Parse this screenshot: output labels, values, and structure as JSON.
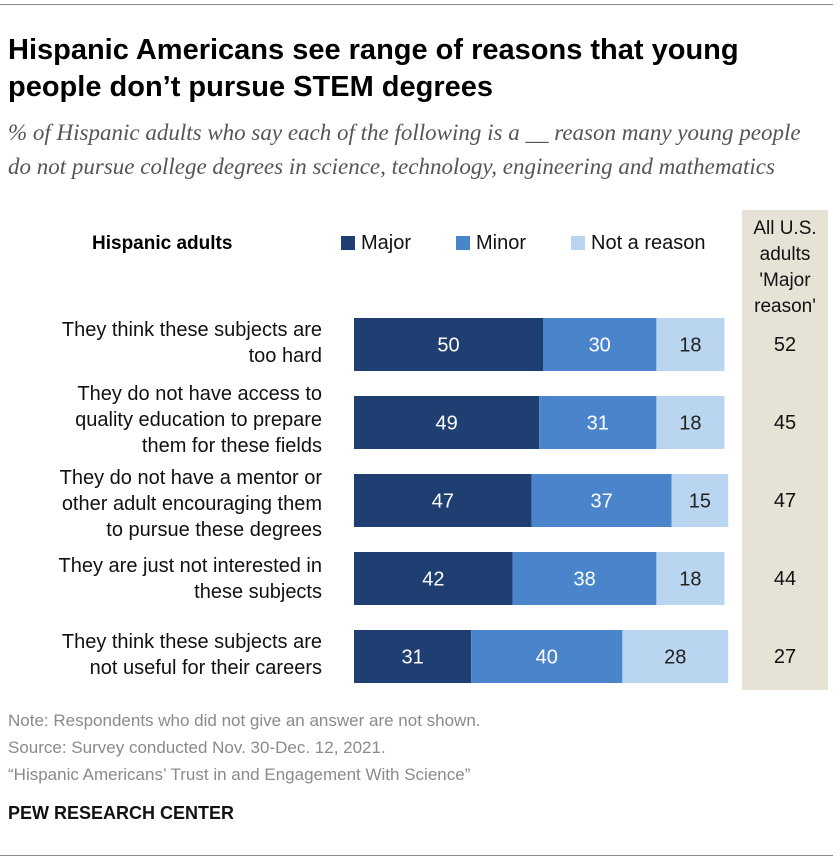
{
  "title": "Hispanic Americans see range of reasons that young people don’t pursue STEM degrees",
  "subtitle": "% of Hispanic adults who say each of the following is a __ reason many young people do not pursue college degrees in science, technology, engineering and mathematics",
  "group_label": "Hispanic adults",
  "us_header": [
    "All U.S.",
    "adults",
    "'Major",
    "reason'"
  ],
  "colors": {
    "major": "#1f3f73",
    "minor": "#4a85cc",
    "not": "#b9d5f0",
    "panel": "#e6e2d6"
  },
  "chart_data": {
    "type": "bar",
    "orientation": "horizontal",
    "stacked": true,
    "xlim": [
      0,
      100
    ],
    "categories": [
      [
        "They think these subjects are",
        "too hard"
      ],
      [
        "They do not have access to",
        "quality education to prepare",
        "them for these fields"
      ],
      [
        "They do not have a mentor or",
        "other adult encouraging them",
        "to pursue these degrees"
      ],
      [
        "They are just not interested in",
        "these subjects"
      ],
      [
        "They think these subjects are",
        "not useful for their careers"
      ]
    ],
    "series": [
      {
        "name": "Major",
        "values": [
          50,
          49,
          47,
          42,
          31
        ]
      },
      {
        "name": "Minor",
        "values": [
          30,
          31,
          37,
          38,
          40
        ]
      },
      {
        "name": "Not a reason",
        "values": [
          18,
          18,
          15,
          18,
          28
        ]
      }
    ],
    "all_us_major_reason": [
      52,
      45,
      47,
      44,
      27
    ]
  },
  "notes": [
    "Note: Respondents who did not give an answer are not shown.",
    "Source: Survey conducted Nov. 30-Dec. 12, 2021.",
    "“Hispanic Americans’ Trust in and Engagement With Science”"
  ],
  "org": "PEW RESEARCH CENTER"
}
